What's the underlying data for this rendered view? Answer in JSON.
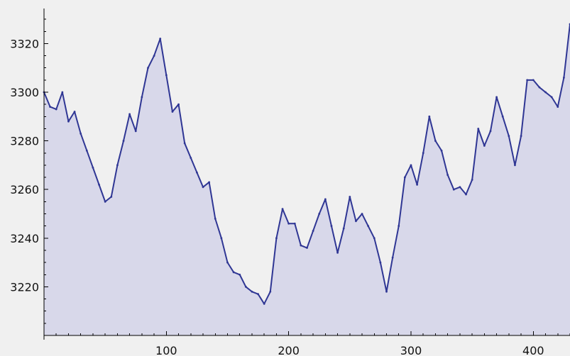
{
  "chart_data": {
    "type": "area",
    "title": "",
    "xlabel": "",
    "ylabel": "",
    "xlim": [
      0,
      430
    ],
    "ylim": [
      3200,
      3335
    ],
    "grid": false,
    "x_ticks": [
      100,
      200,
      300,
      400
    ],
    "y_ticks": [
      3220,
      3240,
      3260,
      3280,
      3300,
      3320
    ],
    "x_tick_labels": [
      "100",
      "200",
      "300",
      "400"
    ],
    "y_tick_labels": [
      "3220",
      "3240",
      "3260",
      "3280",
      "3300",
      "3320"
    ],
    "colors": {
      "line": "#2f3694",
      "fill": "#d8d8ea",
      "background": "#f0f0f0"
    },
    "series": [
      {
        "x": [
          0,
          5,
          10,
          15,
          20,
          25,
          30,
          35,
          40,
          45,
          50,
          55,
          60,
          65,
          70,
          75,
          80,
          85,
          90,
          95,
          100,
          105,
          110,
          115,
          120,
          125,
          130,
          135,
          140,
          145,
          150,
          155,
          160,
          165,
          170,
          175,
          180,
          185,
          190,
          195,
          200,
          205,
          210,
          215,
          220,
          225,
          230,
          235,
          240,
          245,
          250,
          255,
          260,
          265,
          270,
          275,
          280,
          285,
          290,
          295,
          300,
          305,
          310,
          315,
          320,
          325,
          330,
          335,
          340,
          345,
          350,
          355,
          360,
          365,
          370,
          375,
          380,
          385,
          390,
          395,
          400,
          405,
          410,
          415,
          420,
          425,
          430
        ],
        "values": [
          3300,
          3294,
          3293,
          3300,
          3288,
          3292,
          3283,
          3276,
          3269,
          3262,
          3255,
          3257,
          3270,
          3280,
          3291,
          3284,
          3298,
          3310,
          3315,
          3322,
          3307,
          3292,
          3295,
          3279,
          3273,
          3267,
          3261,
          3263,
          3248,
          3240,
          3230,
          3226,
          3225,
          3220,
          3218,
          3217,
          3213,
          3218,
          3240,
          3252,
          3246,
          3246,
          3237,
          3236,
          3243,
          3250,
          3256,
          3245,
          3234,
          3244,
          3257,
          3247,
          3250,
          3245,
          3240,
          3230,
          3218,
          3232,
          3245,
          3265,
          3270,
          3262,
          3275,
          3290,
          3280,
          3276,
          3266,
          3260,
          3261,
          3258,
          3264,
          3285,
          3278,
          3284,
          3298,
          3290,
          3282,
          3270,
          3282,
          3305,
          3305,
          3302,
          3300,
          3298,
          3294,
          3306,
          3328
        ]
      }
    ]
  }
}
